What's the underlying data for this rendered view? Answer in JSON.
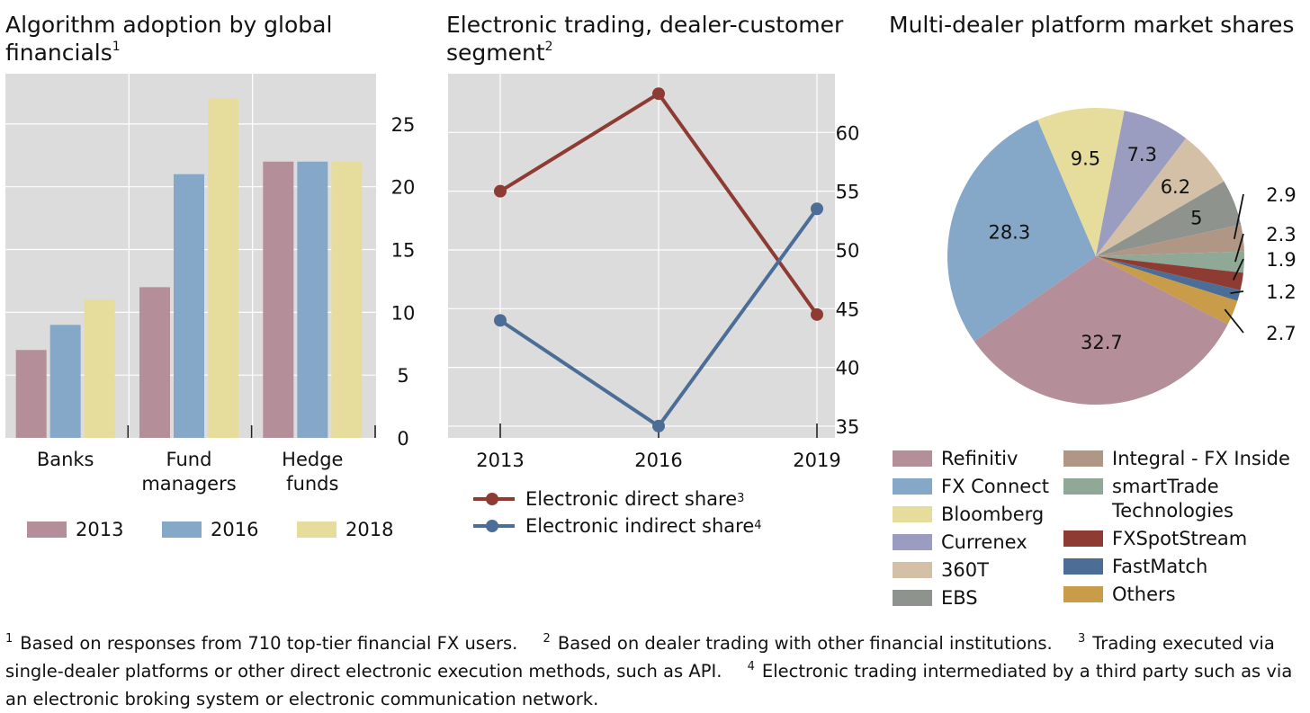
{
  "panels": {
    "left_title": "Algorithm adoption by global financials",
    "left_title_sup": "1",
    "middle_title": "Electronic trading, dealer-customer segment",
    "middle_title_sup": "2",
    "right_title": "Multi-dealer platform market shares"
  },
  "colors": {
    "c2013": "#b48e98",
    "c2016": "#86a8c8",
    "c2018": "#e6dc9c",
    "direct": "#8e3b34",
    "indirect": "#4c6e96",
    "plot_bg": "#dcdcdc"
  },
  "chart_data": [
    {
      "type": "bar",
      "title": "Algorithm adoption by global financials",
      "categories": [
        "Banks",
        "Fund managers",
        "Hedge funds"
      ],
      "series": [
        {
          "name": "2013",
          "values": [
            7,
            12,
            22
          ]
        },
        {
          "name": "2016",
          "values": [
            9,
            21,
            22
          ]
        },
        {
          "name": "2018",
          "values": [
            11,
            27,
            22
          ]
        }
      ],
      "yticks": [
        0,
        5,
        10,
        15,
        20,
        25
      ],
      "ylim": [
        0,
        29
      ],
      "y_axis_side": "right",
      "grid": true,
      "legend": "bottom"
    },
    {
      "type": "line",
      "title": "Electronic trading, dealer-customer segment",
      "x": [
        "2013",
        "2016",
        "2019"
      ],
      "series": [
        {
          "name": "Electronic direct share",
          "sup": "3",
          "values": [
            55.0,
            63.3,
            44.5
          ]
        },
        {
          "name": "Electronic indirect share",
          "sup": "4",
          "values": [
            44.0,
            35.0,
            53.5
          ]
        }
      ],
      "yticks": [
        35,
        40,
        45,
        50,
        55,
        60
      ],
      "ylim": [
        34,
        65
      ],
      "y_axis_side": "right",
      "grid": true,
      "legend": "bottom"
    },
    {
      "type": "pie",
      "title": "Multi-dealer platform market shares",
      "slices": [
        {
          "label": "Refinitiv",
          "value": 32.7,
          "color": "#b48e98"
        },
        {
          "label": "FX Connect",
          "value": 28.3,
          "color": "#86a8c8"
        },
        {
          "label": "Bloomberg",
          "value": 9.5,
          "color": "#e6dc9c"
        },
        {
          "label": "Currenex",
          "value": 7.3,
          "color": "#9a9cc0"
        },
        {
          "label": "360T",
          "value": 6.2,
          "color": "#d4c0a6"
        },
        {
          "label": "EBS",
          "value": 5,
          "color": "#8e938e"
        },
        {
          "label": "Integral - FX Inside",
          "value": 2.9,
          "color": "#b09684"
        },
        {
          "label": "smartTrade Technologies",
          "value": 2.3,
          "color": "#90a896"
        },
        {
          "label": "FXSpotStream",
          "value": 1.9,
          "color": "#8e3b34"
        },
        {
          "label": "FastMatch",
          "value": 1.2,
          "color": "#4c6e96"
        },
        {
          "label": "Others",
          "value": 2.7,
          "color": "#c89c48"
        }
      ],
      "slice_labels": [
        "32.7",
        "28.3",
        "9.5",
        "7.3",
        "6.2",
        "5",
        "2.9",
        "2.3",
        "1.9",
        "1.2",
        "2.7"
      ],
      "legend": "bottom"
    }
  ],
  "legends": {
    "bar": [
      "2013",
      "2016",
      "2018"
    ],
    "line": [
      {
        "label": "Electronic direct share",
        "sup": "3"
      },
      {
        "label": "Electronic indirect share",
        "sup": "4"
      }
    ],
    "pie_left": [
      "Refinitiv",
      "FX Connect",
      "Bloomberg",
      "Currenex",
      "360T",
      "EBS"
    ],
    "pie_right_1": "Integral - FX Inside",
    "pie_right_2a": "smartTrade",
    "pie_right_2b": "Technologies",
    "pie_right_3": "FXSpotStream",
    "pie_right_4": "FastMatch",
    "pie_right_5": "Others"
  },
  "footnotes": {
    "n1_sup": "1",
    "n1": "Based on responses from 710 top-tier financial FX users.",
    "n2_sup": "2",
    "n2": "Based on dealer trading with other financial institutions.",
    "n3_sup": "3",
    "n3": "Trading executed via single-dealer platforms or other direct electronic execution methods, such as API.",
    "n4_sup": "4",
    "n4": "Electronic trading intermediated by a third party such as via an electronic broking system or electronic communication network."
  }
}
